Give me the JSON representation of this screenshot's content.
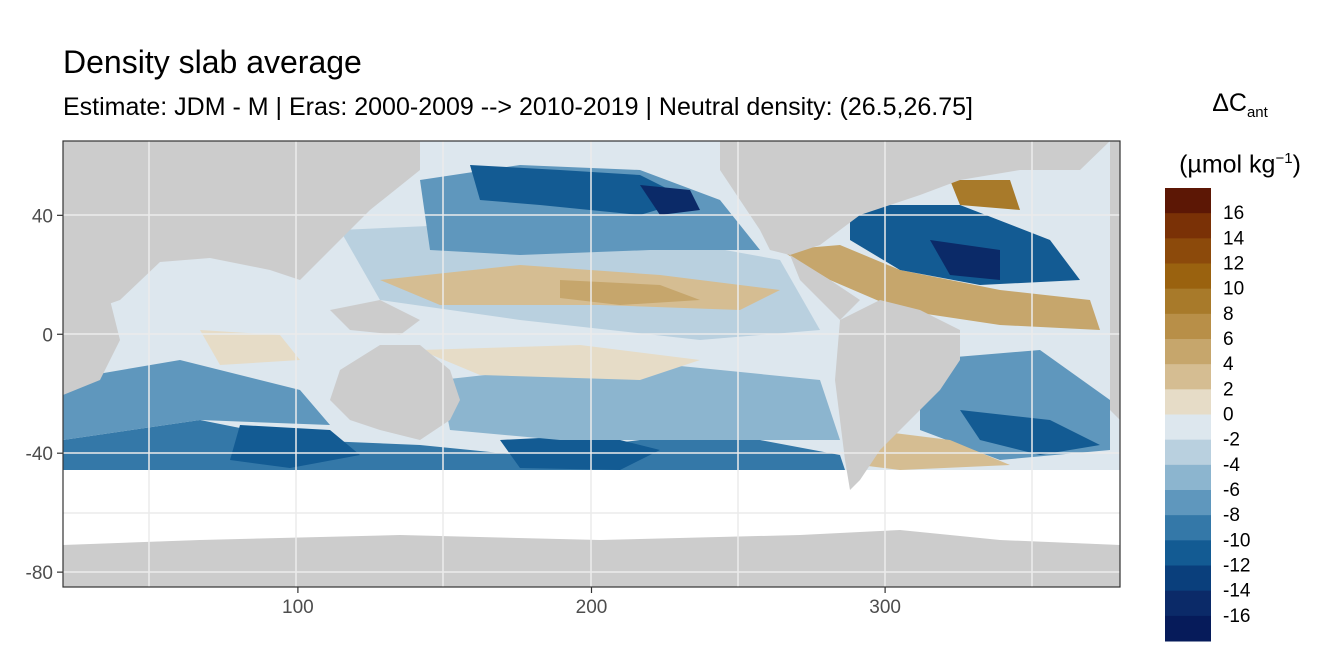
{
  "chart_data": {
    "type": "heatmap",
    "title": "Density slab average",
    "subtitle": "Estimate: JDM - M | Eras: 2000-2009 --> 2010-2019 | Neutral density: (26.5,26.75]",
    "xlim": [
      20,
      380
    ],
    "ylim": [
      -85,
      65
    ],
    "x_ticks": [
      "100",
      "200",
      "300"
    ],
    "x_tick_values": [
      100,
      200,
      300
    ],
    "y_ticks": [
      "40",
      "0",
      "-40",
      "-80"
    ],
    "y_tick_values": [
      40,
      0,
      -40,
      -80
    ],
    "grid": true,
    "legend_placement": "right",
    "legend": {
      "title_main": "ΔC",
      "title_sub": "ant",
      "unit_main": "(µmol kg",
      "unit_sup": "−1",
      "unit_close": ")",
      "labels": [
        "16",
        "14",
        "12",
        "10",
        "8",
        "6",
        "4",
        "2",
        "0",
        "-2",
        "-4",
        "-6",
        "-8",
        "-10",
        "-12",
        "-14",
        "-16"
      ],
      "colors": [
        "#5c1705",
        "#7a3106",
        "#8c4a0b",
        "#9a620f",
        "#a87a2a",
        "#b88f48",
        "#c6a66c",
        "#d5bd92",
        "#e6dcc7",
        "#dde7ee",
        "#b9d0df",
        "#8cb5cf",
        "#5f97bd",
        "#3478a8",
        "#135b93",
        "#0a3f7c",
        "#0b2a68",
        "#061b5a"
      ]
    },
    "colors": {
      "land": "#cccccc",
      "no_data": "#ffffff",
      "panel_border": "#333333",
      "grid": "#ebebeb"
    }
  }
}
